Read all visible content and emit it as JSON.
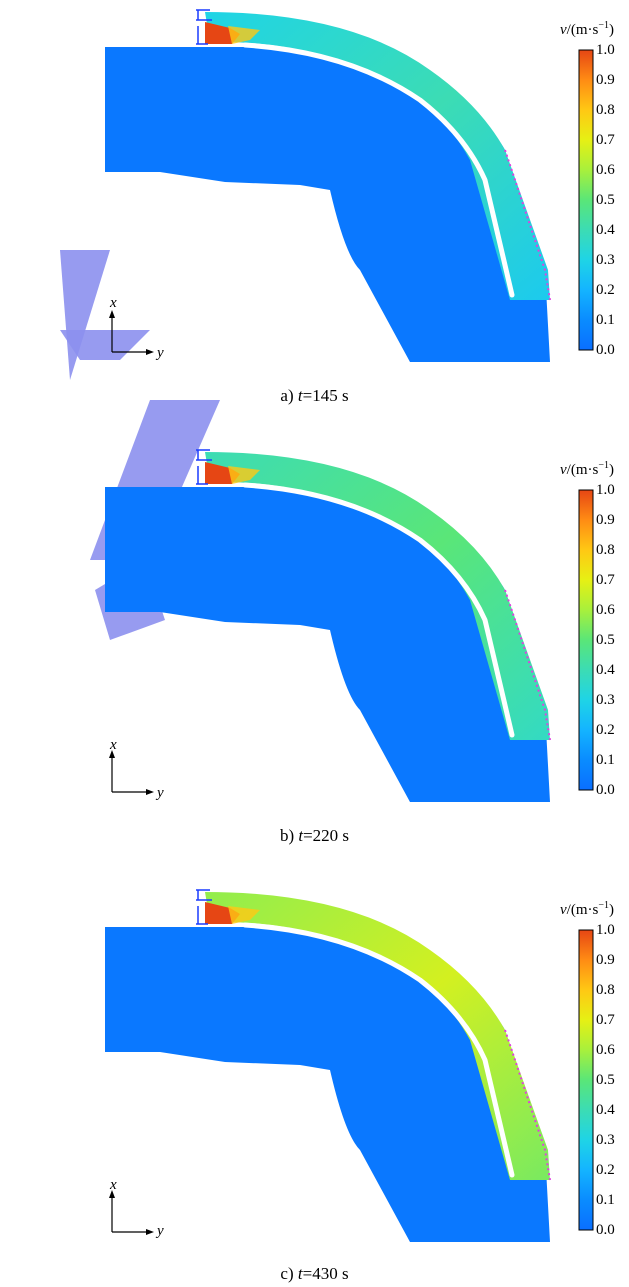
{
  "panels": [
    {
      "label_prefix": "a)",
      "var": "t",
      "value": "=145 s",
      "stage": 0.35
    },
    {
      "label_prefix": "b)",
      "var": "t",
      "value": "=220 s",
      "stage": 0.45
    },
    {
      "label_prefix": "c)",
      "var": "t",
      "value": "=430 s",
      "stage": 0.62
    }
  ],
  "colorbar": {
    "var": "v",
    "unit": "/(m·s",
    "exp": "−1",
    "close": ")",
    "ticks": [
      "1.0",
      "0.9",
      "0.8",
      "0.7",
      "0.6",
      "0.5",
      "0.4",
      "0.3",
      "0.2",
      "0.1",
      "0.0"
    ]
  },
  "axes": {
    "x": "x",
    "y": "y"
  },
  "colors": {
    "domain": "#0a78ff",
    "boundary": "#e040e0",
    "watermark": "#8c90ee"
  }
}
